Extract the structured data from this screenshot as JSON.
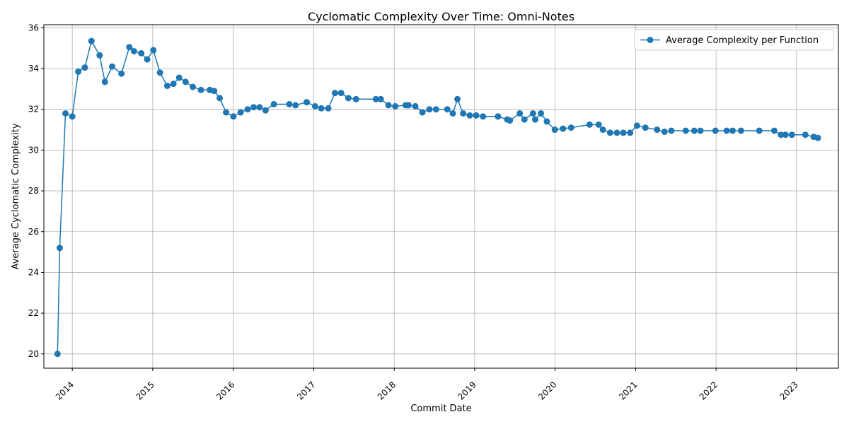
{
  "chart_data": {
    "type": "line",
    "title": "Cyclomatic Complexity Over Time: Omni-Notes",
    "xlabel": "Commit Date",
    "ylabel": "Average Cyclomatic Complexity",
    "x_axis_type": "date",
    "xlim": [
      "2013-08-25",
      "2023-07-10"
    ],
    "ylim": [
      19.3,
      36.15
    ],
    "yticks": [
      20,
      22,
      24,
      26,
      28,
      30,
      32,
      34,
      36
    ],
    "xticks": [
      "2014-01-01",
      "2015-01-01",
      "2016-01-01",
      "2017-01-01",
      "2018-01-01",
      "2019-01-01",
      "2020-01-01",
      "2021-01-01",
      "2022-01-01",
      "2023-01-01"
    ],
    "xtick_labels": [
      "2014",
      "2015",
      "2016",
      "2017",
      "2018",
      "2019",
      "2020",
      "2021",
      "2022",
      "2023"
    ],
    "xtick_rotation": 45,
    "grid": true,
    "legend_position": "top-right",
    "line_color": "#1f77b4",
    "marker": "circle",
    "series": [
      {
        "name": "Average Complexity per Function",
        "points": [
          [
            "2013-10-26",
            20.0
          ],
          [
            "2013-11-05",
            25.2
          ],
          [
            "2013-12-01",
            31.8
          ],
          [
            "2014-01-01",
            31.65
          ],
          [
            "2014-01-28",
            33.85
          ],
          [
            "2014-02-27",
            34.05
          ],
          [
            "2014-03-29",
            35.35
          ],
          [
            "2014-05-05",
            34.65
          ],
          [
            "2014-05-29",
            33.35
          ],
          [
            "2014-07-01",
            34.1
          ],
          [
            "2014-08-12",
            33.75
          ],
          [
            "2014-09-17",
            35.05
          ],
          [
            "2014-10-08",
            34.85
          ],
          [
            "2014-11-10",
            34.75
          ],
          [
            "2014-12-07",
            34.45
          ],
          [
            "2015-01-04",
            34.9
          ],
          [
            "2015-02-03",
            33.8
          ],
          [
            "2015-03-08",
            33.15
          ],
          [
            "2015-04-05",
            33.25
          ],
          [
            "2015-05-01",
            33.55
          ],
          [
            "2015-05-30",
            33.35
          ],
          [
            "2015-07-02",
            33.1
          ],
          [
            "2015-08-08",
            32.95
          ],
          [
            "2015-09-17",
            32.95
          ],
          [
            "2015-10-07",
            32.9
          ],
          [
            "2015-11-01",
            32.55
          ],
          [
            "2015-11-30",
            31.85
          ],
          [
            "2016-01-02",
            31.65
          ],
          [
            "2016-02-04",
            31.85
          ],
          [
            "2016-03-07",
            32.0
          ],
          [
            "2016-04-03",
            32.1
          ],
          [
            "2016-04-30",
            32.1
          ],
          [
            "2016-05-27",
            31.95
          ],
          [
            "2016-07-04",
            32.25
          ],
          [
            "2016-09-12",
            32.25
          ],
          [
            "2016-10-10",
            32.2
          ],
          [
            "2016-11-30",
            32.35
          ],
          [
            "2017-01-07",
            32.15
          ],
          [
            "2017-02-04",
            32.05
          ],
          [
            "2017-03-08",
            32.05
          ],
          [
            "2017-04-07",
            32.8
          ],
          [
            "2017-05-05",
            32.8
          ],
          [
            "2017-06-07",
            32.55
          ],
          [
            "2017-07-12",
            32.5
          ],
          [
            "2017-10-10",
            32.5
          ],
          [
            "2017-11-01",
            32.5
          ],
          [
            "2017-12-06",
            32.2
          ],
          [
            "2018-01-06",
            32.15
          ],
          [
            "2018-02-22",
            32.2
          ],
          [
            "2018-03-07",
            32.2
          ],
          [
            "2018-04-07",
            32.15
          ],
          [
            "2018-05-09",
            31.85
          ],
          [
            "2018-06-10",
            32.0
          ],
          [
            "2018-07-10",
            32.0
          ],
          [
            "2018-08-30",
            32.0
          ],
          [
            "2018-09-24",
            31.8
          ],
          [
            "2018-10-15",
            32.5
          ],
          [
            "2018-11-10",
            31.8
          ],
          [
            "2018-12-10",
            31.7
          ],
          [
            "2019-01-08",
            31.7
          ],
          [
            "2019-02-08",
            31.65
          ],
          [
            "2019-04-17",
            31.65
          ],
          [
            "2019-05-29",
            31.5
          ],
          [
            "2019-06-10",
            31.45
          ],
          [
            "2019-07-25",
            31.8
          ],
          [
            "2019-08-15",
            31.5
          ],
          [
            "2019-09-23",
            31.8
          ],
          [
            "2019-10-03",
            31.5
          ],
          [
            "2019-10-29",
            31.8
          ],
          [
            "2019-11-25",
            31.4
          ],
          [
            "2019-12-31",
            31.0
          ],
          [
            "2020-02-06",
            31.05
          ],
          [
            "2020-03-14",
            31.1
          ],
          [
            "2020-06-06",
            31.25
          ],
          [
            "2020-07-17",
            31.25
          ],
          [
            "2020-08-05",
            31.0
          ],
          [
            "2020-09-07",
            30.85
          ],
          [
            "2020-10-08",
            30.85
          ],
          [
            "2020-11-06",
            30.85
          ],
          [
            "2020-12-07",
            30.85
          ],
          [
            "2021-01-07",
            31.2
          ],
          [
            "2021-02-14",
            31.1
          ],
          [
            "2021-04-08",
            31.0
          ],
          [
            "2021-05-12",
            30.9
          ],
          [
            "2021-06-12",
            30.95
          ],
          [
            "2021-08-16",
            30.95
          ],
          [
            "2021-09-24",
            30.95
          ],
          [
            "2021-10-22",
            30.95
          ],
          [
            "2021-12-29",
            30.95
          ],
          [
            "2022-02-18",
            30.95
          ],
          [
            "2022-03-17",
            30.95
          ],
          [
            "2022-04-24",
            30.95
          ],
          [
            "2022-07-16",
            30.95
          ],
          [
            "2022-09-22",
            30.95
          ],
          [
            "2022-10-22",
            30.75
          ],
          [
            "2022-11-12",
            30.75
          ],
          [
            "2022-12-11",
            30.75
          ],
          [
            "2023-02-10",
            30.75
          ],
          [
            "2023-03-20",
            30.65
          ],
          [
            "2023-04-08",
            30.6
          ]
        ]
      }
    ]
  }
}
